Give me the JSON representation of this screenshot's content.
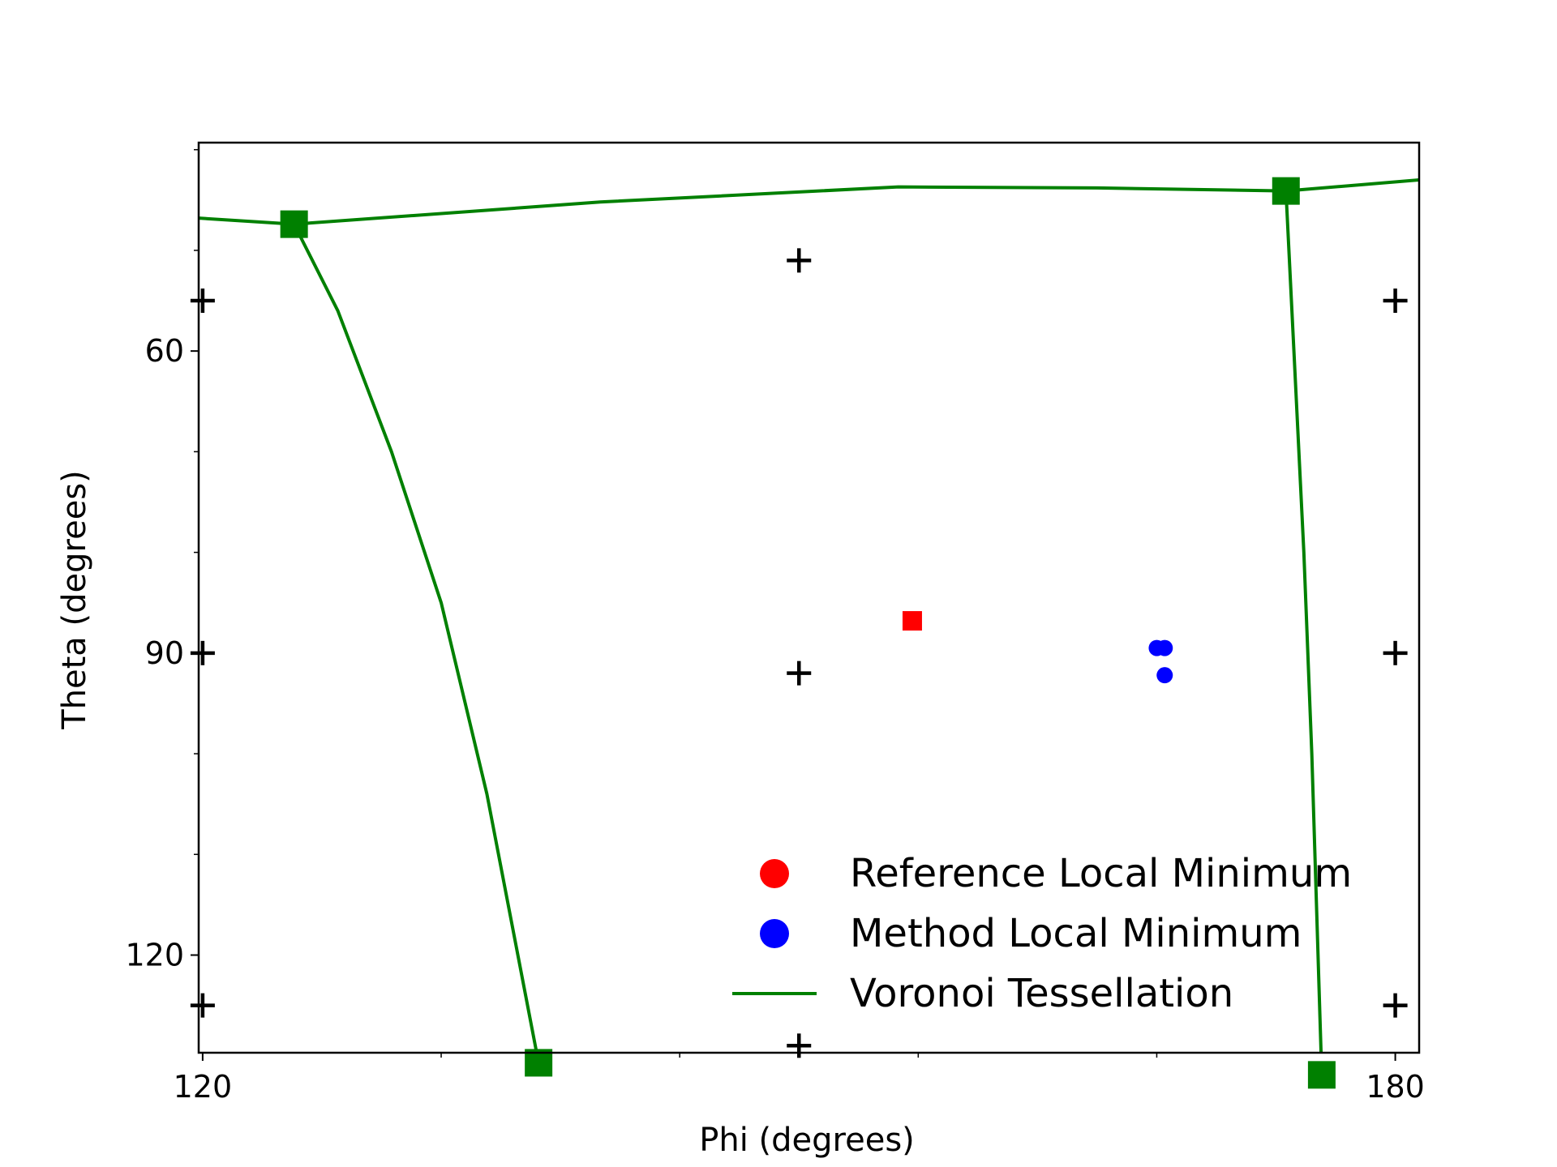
{
  "chart_data": {
    "type": "scatter",
    "title": "",
    "xlabel": "Phi (degrees)",
    "ylabel": "Theta (degrees)",
    "xlim": [
      119.8,
      181.2
    ],
    "ylim": [
      129.7,
      39.3
    ],
    "y_inverted": true,
    "grid": false,
    "legend_position": "lower right",
    "x_ticks": [
      {
        "value": 120,
        "label": "120"
      },
      {
        "value": 180,
        "label": "180"
      }
    ],
    "x_minor_ticks": [
      132,
      144,
      156,
      168
    ],
    "y_ticks": [
      {
        "value": 60,
        "label": "60"
      },
      {
        "value": 90,
        "label": "90"
      },
      {
        "value": 120,
        "label": "120"
      }
    ],
    "y_minor_ticks": [
      40,
      50,
      70,
      80,
      100,
      110
    ],
    "series": [
      {
        "name": "Reference Local Minimum",
        "marker": "circle",
        "color": "#ff0000",
        "points": [
          [
            155.7,
            86.8
          ]
        ]
      },
      {
        "name": "Method Local Minimum",
        "marker": "circle",
        "color": "#0000ff",
        "points": [
          [
            168.0,
            89.5
          ],
          [
            168.4,
            89.5
          ],
          [
            168.4,
            92.2
          ]
        ]
      },
      {
        "name": "Voronoi Tessellation",
        "marker": "line",
        "color": "#008000",
        "vertices": [
          [
            124.6,
            47.4
          ],
          [
            174.5,
            44.1
          ],
          [
            136.9,
            130.7
          ],
          [
            176.3,
            131.9
          ]
        ],
        "edges": [
          [
            [
              119.8,
              46.8
            ],
            [
              124.6,
              47.4
            ]
          ],
          [
            [
              124.6,
              47.4
            ],
            [
              140.0,
              45.2
            ],
            [
              155.0,
              43.7
            ],
            [
              165.0,
              43.8
            ],
            [
              174.5,
              44.1
            ]
          ],
          [
            [
              174.5,
              44.1
            ],
            [
              181.2,
              43.0
            ]
          ],
          [
            [
              124.6,
              47.4
            ],
            [
              126.8,
              56.0
            ],
            [
              129.5,
              70.0
            ],
            [
              132.0,
              85.0
            ],
            [
              134.3,
              104.0
            ],
            [
              136.9,
              130.7
            ]
          ],
          [
            [
              174.5,
              44.1
            ],
            [
              174.9,
              60.0
            ],
            [
              175.4,
              80.0
            ],
            [
              175.8,
              100.0
            ],
            [
              176.3,
              131.9
            ]
          ],
          [
            [
              119.8,
              133.3
            ],
            [
              128.0,
              132.4
            ],
            [
              136.9,
              130.7
            ]
          ],
          [
            [
              136.9,
              130.7
            ],
            [
              150.0,
              132.7
            ],
            [
              158.0,
              133.0
            ],
            [
              168.0,
              132.6
            ],
            [
              176.3,
              131.9
            ]
          ],
          [
            [
              176.3,
              131.9
            ],
            [
              181.2,
              132.6
            ]
          ]
        ]
      },
      {
        "name": "sites",
        "marker": "plus",
        "color": "#000000",
        "points": [
          [
            120.0,
            55.0
          ],
          [
            120.0,
            90.0
          ],
          [
            120.0,
            125.0
          ],
          [
            150.0,
            51.0
          ],
          [
            150.0,
            92.0
          ],
          [
            150.0,
            129.0
          ],
          [
            180.0,
            55.0
          ],
          [
            180.0,
            90.0
          ],
          [
            180.0,
            125.0
          ]
        ]
      }
    ]
  }
}
